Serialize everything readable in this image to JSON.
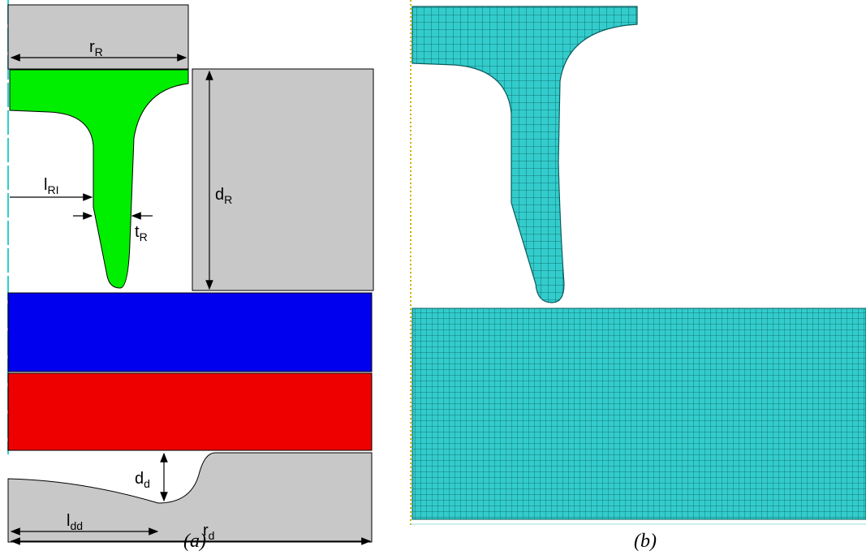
{
  "panel_a": {
    "dimensions": [
      {
        "main": "r",
        "sub": "R"
      },
      {
        "main": "l",
        "sub": "RI"
      },
      {
        "main": "t",
        "sub": "R"
      },
      {
        "main": "d",
        "sub": "R"
      },
      {
        "main": "d",
        "sub": "d"
      },
      {
        "main": "l",
        "sub": "dd"
      },
      {
        "main": "r",
        "sub": "d"
      }
    ],
    "caption": "(a)"
  },
  "panel_b": {
    "caption": "(b)"
  }
}
